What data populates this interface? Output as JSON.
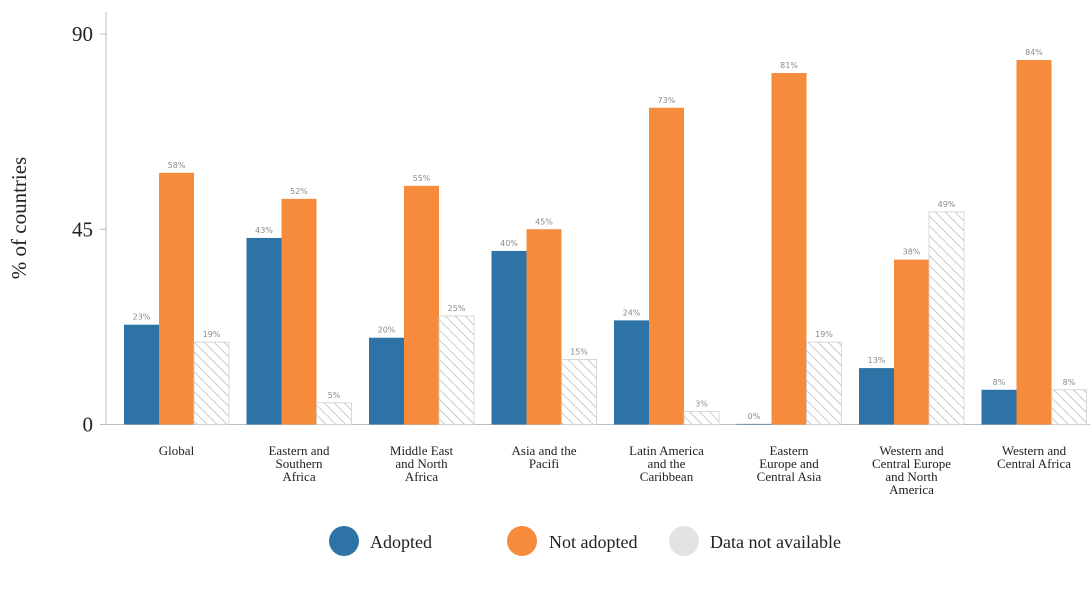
{
  "chart_data": {
    "type": "bar",
    "ylabel": "% of countries",
    "xlabel": "",
    "ylim": [
      0,
      90
    ],
    "yticks": [
      0,
      45,
      90
    ],
    "grid": false,
    "legend_position": "bottom",
    "categories": [
      [
        "Global"
      ],
      [
        "Eastern and",
        "Southern",
        "Africa"
      ],
      [
        "Middle East",
        "and North",
        "Africa"
      ],
      [
        "Asia and the",
        "Pacifi"
      ],
      [
        "Latin America",
        "and the",
        "Caribbean"
      ],
      [
        "Eastern",
        "Europe and",
        "Central Asia"
      ],
      [
        "Western and",
        "Central Europe",
        "and North",
        "America"
      ],
      [
        "Western and",
        "Central Africa"
      ]
    ],
    "series": [
      {
        "name": "Adopted",
        "color": "#2e73a6",
        "pattern": "solid",
        "values": [
          23,
          43,
          20,
          40,
          24,
          0,
          13,
          8
        ],
        "labels": [
          "23%",
          "43%",
          "20%",
          "40%",
          "24%",
          "0%",
          "13%",
          "8%"
        ]
      },
      {
        "name": "Not adopted",
        "color": "#f58b3b",
        "pattern": "solid",
        "values": [
          58,
          52,
          55,
          45,
          73,
          81,
          38,
          84
        ],
        "labels": [
          "58%",
          "52%",
          "55%",
          "45%",
          "73%",
          "81%",
          "38%",
          "84%"
        ]
      },
      {
        "name": "Data not available",
        "color": "#e3e3e3",
        "pattern": "hatched",
        "values": [
          19,
          5,
          25,
          15,
          3,
          19,
          49,
          8
        ],
        "labels": [
          "19%",
          "5%",
          "25%",
          "15%",
          "3%",
          "19%",
          "49%",
          "8%"
        ]
      }
    ]
  }
}
